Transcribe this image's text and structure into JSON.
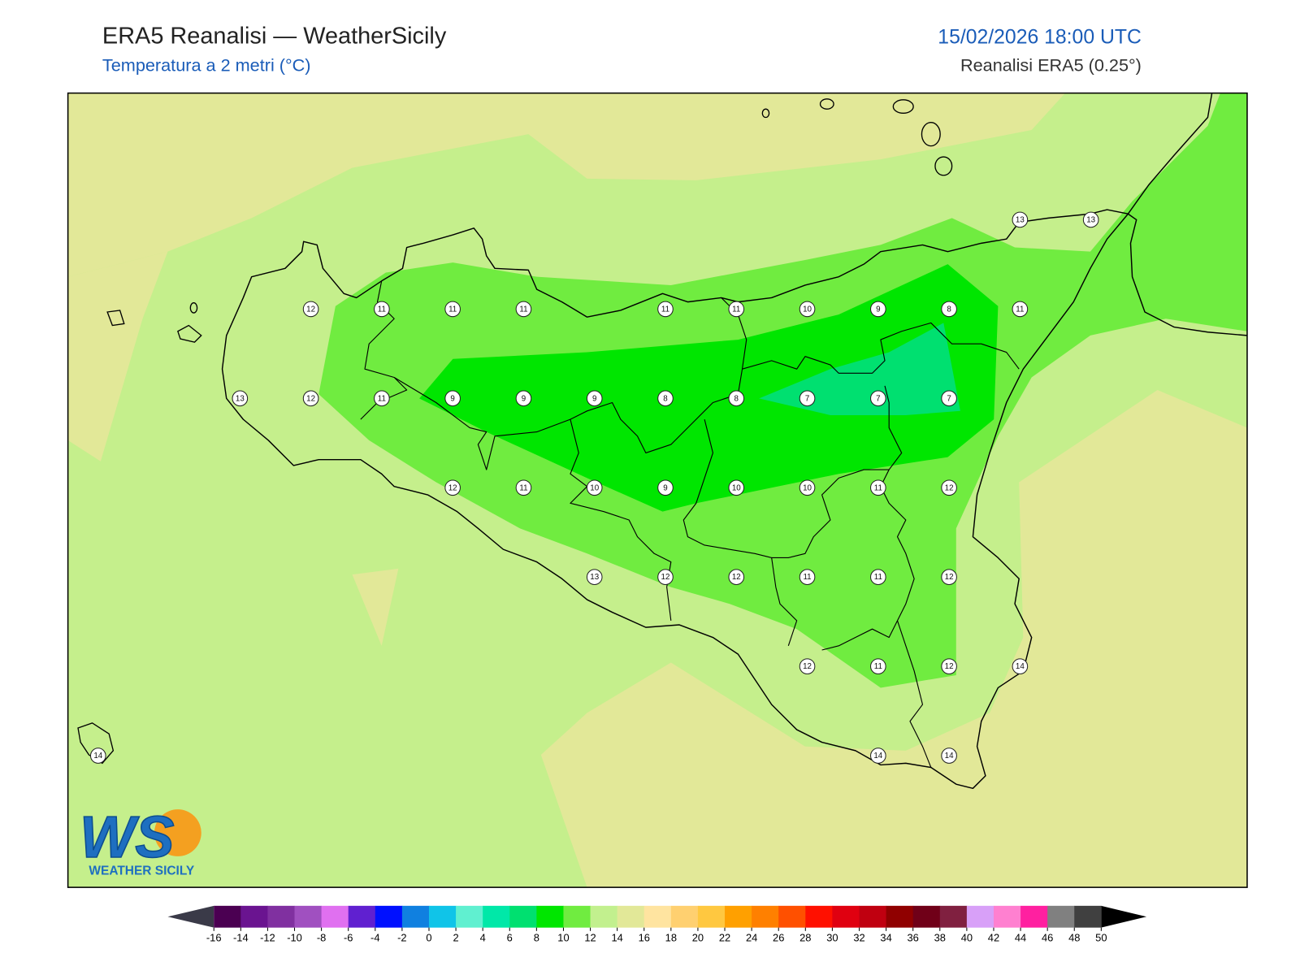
{
  "header": {
    "title": "ERA5 Reanalisi — WeatherSicily",
    "subtitle": "Temperatura a 2 metri (°C)",
    "datetime": "15/02/2026 18:00 UTC",
    "source": "Reanalisi ERA5 (0.25°)"
  },
  "logo": {
    "letters": "WS",
    "name": "WEATHER SICILY"
  },
  "stations": {
    "grid": [
      [
        null,
        null,
        null,
        null,
        null,
        null,
        null,
        null,
        null,
        null,
        null,
        null,
        null,
        13,
        13
      ],
      [
        null,
        null,
        null,
        12,
        11,
        11,
        11,
        null,
        11,
        11,
        10,
        9,
        8,
        11,
        null
      ],
      [
        null,
        null,
        13,
        12,
        11,
        9,
        9,
        9,
        8,
        8,
        7,
        7,
        7,
        null,
        null
      ],
      [
        null,
        null,
        null,
        null,
        null,
        12,
        11,
        10,
        9,
        10,
        10,
        11,
        12,
        null,
        null
      ],
      [
        null,
        null,
        null,
        null,
        null,
        null,
        null,
        13,
        12,
        12,
        11,
        11,
        12,
        null,
        null
      ],
      [
        null,
        null,
        null,
        null,
        null,
        null,
        null,
        null,
        null,
        null,
        12,
        11,
        12,
        14,
        null
      ],
      [
        14,
        null,
        null,
        null,
        null,
        null,
        null,
        null,
        null,
        null,
        null,
        14,
        14,
        null,
        null
      ]
    ]
  },
  "colorbar": {
    "ticks": [
      -16,
      -14,
      -12,
      -10,
      -8,
      -6,
      -4,
      -2,
      0,
      2,
      4,
      6,
      8,
      10,
      12,
      14,
      16,
      18,
      20,
      22,
      24,
      26,
      28,
      30,
      32,
      34,
      36,
      38,
      40,
      42,
      44,
      46,
      48,
      50
    ],
    "colors": [
      "#4b0052",
      "#6a1490",
      "#8030a0",
      "#a050c0",
      "#e070f0",
      "#6020d0",
      "#0010ff",
      "#1080e0",
      "#10c4e8",
      "#60f0d0",
      "#00e8a8",
      "#00e070",
      "#00e600",
      "#70ec40",
      "#c2f08e",
      "#e2e898",
      "#ffe4a0",
      "#ffd070",
      "#ffc840",
      "#ffa000",
      "#ff8000",
      "#ff5000",
      "#ff1000",
      "#e00010",
      "#c00010",
      "#900000",
      "#700018",
      "#802040",
      "#d8a0f8",
      "#ff80d0",
      "#ff20a0",
      "#808080",
      "#404040"
    ],
    "under": "#3a3a48",
    "over": "#000000"
  }
}
